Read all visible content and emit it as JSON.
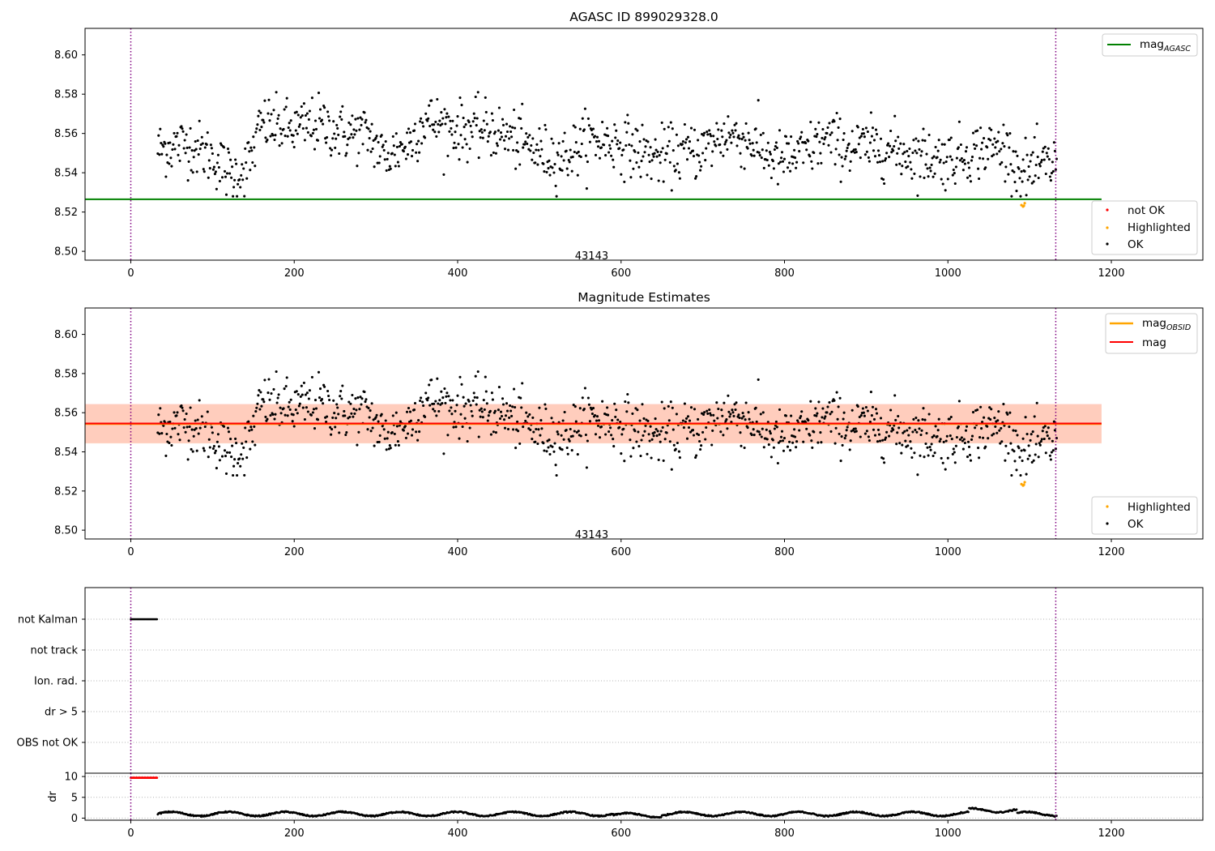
{
  "chart_data": [
    {
      "type": "scatter",
      "title": "AGASC ID 899029328.0",
      "xlim": [
        -56,
        1312
      ],
      "ylim": [
        8.4955,
        8.6135
      ],
      "xticks": [
        "0",
        "200",
        "400",
        "600",
        "800",
        "1000",
        "1200"
      ],
      "xtick_values": [
        0,
        200,
        400,
        600,
        800,
        1000,
        1200
      ],
      "yticks": [
        "8.50",
        "8.52",
        "8.54",
        "8.56",
        "8.58",
        "8.60"
      ],
      "ytick_values": [
        8.5,
        8.52,
        8.54,
        8.56,
        8.58,
        8.6
      ],
      "annotation": "43143",
      "annotation_at": [
        564,
        8.4975
      ],
      "vlines": [
        0,
        1132
      ],
      "mag_agasc": 8.5265,
      "mag_agasc_xrange": [
        -56,
        1188
      ],
      "point_range": [
        33,
        1133
      ],
      "highlighted": [
        [
          1090,
          8.5235
        ],
        [
          1092,
          8.5228
        ],
        [
          1093,
          8.5232
        ],
        [
          1094,
          8.5245
        ]
      ],
      "legend_upper": [
        {
          "label": "mag",
          "sub": "AGASC",
          "color": "#008000"
        }
      ],
      "legend_lower": [
        {
          "label": "not OK",
          "color": "#ff0000"
        },
        {
          "label": "Highlighted",
          "color": "#ffa500"
        },
        {
          "label": "OK",
          "color": "#000000"
        }
      ]
    },
    {
      "type": "scatter",
      "title": "Magnitude Estimates",
      "xlim": [
        -56,
        1312
      ],
      "ylim": [
        8.4955,
        8.6135
      ],
      "xticks": [
        "0",
        "200",
        "400",
        "600",
        "800",
        "1000",
        "1200"
      ],
      "xtick_values": [
        0,
        200,
        400,
        600,
        800,
        1000,
        1200
      ],
      "yticks": [
        "8.50",
        "8.52",
        "8.54",
        "8.56",
        "8.58",
        "8.60"
      ],
      "ytick_values": [
        8.5,
        8.52,
        8.54,
        8.56,
        8.58,
        8.6
      ],
      "annotation": "43143",
      "annotation_at": [
        564,
        8.4975
      ],
      "vlines": [
        0,
        1132
      ],
      "mag": 8.5545,
      "mag_obsid": 8.5543,
      "mag_band": [
        8.5445,
        8.5645
      ],
      "mag_obsid_band": [
        8.5443,
        8.5643
      ],
      "band_xrange": [
        -56,
        1188
      ],
      "point_range": [
        33,
        1133
      ],
      "highlighted": [
        [
          1090,
          8.5235
        ],
        [
          1092,
          8.5228
        ],
        [
          1093,
          8.5232
        ],
        [
          1094,
          8.5245
        ]
      ],
      "legend_upper": [
        {
          "label": "mag",
          "sub": "OBSID",
          "color": "#ffa500"
        },
        {
          "label": "mag",
          "sub": "",
          "color": "#ff0000"
        }
      ],
      "legend_lower": [
        {
          "label": "Highlighted",
          "color": "#ffa500"
        },
        {
          "label": "OK",
          "color": "#000000"
        }
      ]
    },
    {
      "type": "scatter",
      "title": "",
      "xlim": [
        -56,
        1312
      ],
      "xticks": [
        "0",
        "200",
        "400",
        "600",
        "800",
        "1000",
        "1200"
      ],
      "xtick_values": [
        0,
        200,
        400,
        600,
        800,
        1000,
        1200
      ],
      "flags": [
        "not Kalman",
        "not track",
        "Ion. rad.",
        "dr > 5",
        "OBS not OK"
      ],
      "flag_ranges": {
        "not Kalman": [
          0,
          32
        ]
      },
      "vlines": [
        0,
        1132
      ]
    },
    {
      "type": "scatter",
      "title": "",
      "ylabel": "dr",
      "xlim": [
        -56,
        1312
      ],
      "ylim": [
        -0.5,
        10.8
      ],
      "xticks": [
        "0",
        "200",
        "400",
        "600",
        "800",
        "1000",
        "1200"
      ],
      "xtick_values": [
        0,
        200,
        400,
        600,
        800,
        1000,
        1200
      ],
      "yticks": [
        "0",
        "5",
        "10"
      ],
      "ytick_values": [
        0,
        5,
        10
      ],
      "vlines": [
        0,
        1132
      ],
      "dr_red_range": [
        0,
        32
      ],
      "dr_red_value": 9.7,
      "dr_range": [
        33,
        1133
      ]
    }
  ],
  "colors": {
    "ok": "#000000",
    "not_ok": "#ff0000",
    "highlighted": "#ffa500",
    "mag_agasc": "#008000",
    "mag": "#ff0000",
    "mag_obsid": "#ffa500",
    "vline": "#800080",
    "grid": "#b0b0b0"
  }
}
